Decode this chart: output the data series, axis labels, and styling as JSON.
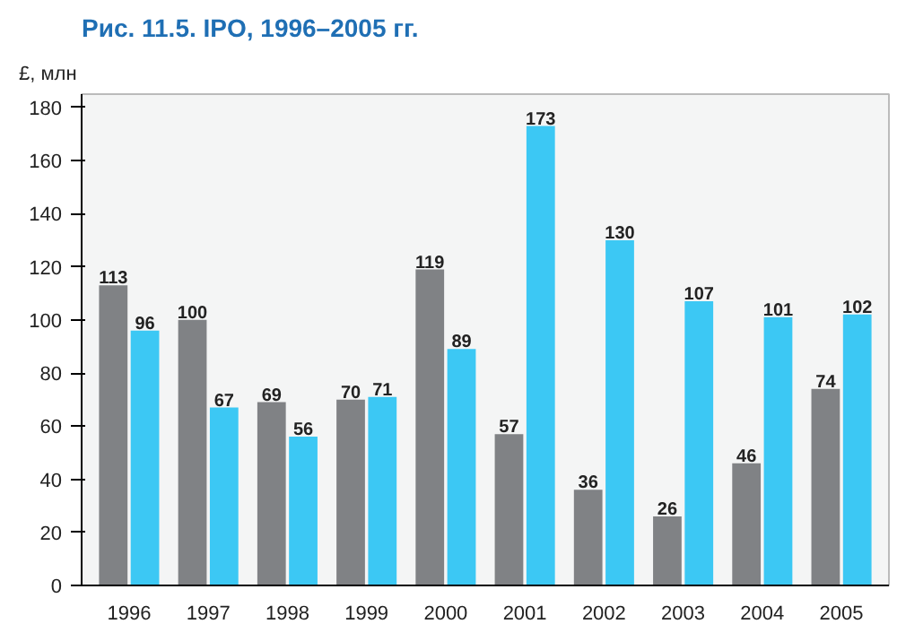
{
  "chart_data": {
    "type": "bar",
    "title": "Рис. 11.5. IPO, 1996–2005 гг.",
    "ylabel": "£, млн",
    "categories": [
      "1996",
      "1997",
      "1998",
      "1999",
      "2000",
      "2001",
      "2002",
      "2003",
      "2004",
      "2005"
    ],
    "series": [
      {
        "color": "#808285",
        "values": [
          113,
          100,
          69,
          70,
          119,
          57,
          36,
          26,
          46,
          74
        ]
      },
      {
        "color": "#3cc8f4",
        "values": [
          96,
          67,
          56,
          71,
          89,
          173,
          130,
          107,
          101,
          102
        ]
      }
    ],
    "ylim": [
      0,
      185
    ],
    "yticks": [
      0,
      20,
      40,
      60,
      80,
      100,
      120,
      140,
      160,
      180
    ],
    "grid": false,
    "data_labels": true
  }
}
